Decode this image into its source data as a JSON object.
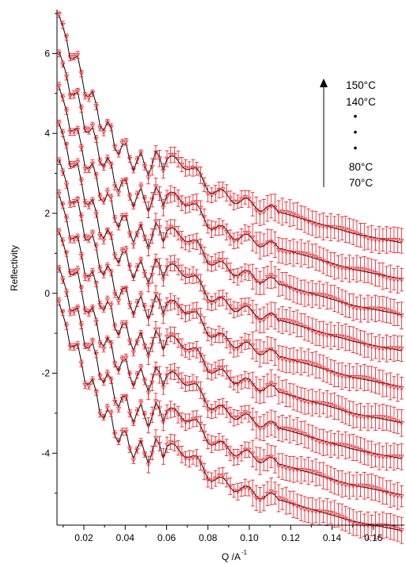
{
  "chart_data": {
    "type": "line",
    "title": "",
    "xlabel": "Q /A",
    "xlabel_superscript": "-1",
    "ylabel": "Reflectivity",
    "xlim": [
      0.007,
      0.175
    ],
    "ylim": [
      -5.8,
      7.1
    ],
    "xticks": [
      0.02,
      0.04,
      0.06,
      0.08,
      0.1,
      0.12,
      0.14,
      0.16
    ],
    "xtick_labels": [
      "0.02",
      "0.04",
      "0.06",
      "0.08",
      "0.10",
      "0.12",
      "0.14",
      "0.16"
    ],
    "yticks": [
      -4,
      -2,
      0,
      2,
      4,
      6
    ],
    "ytick_labels": [
      "-4",
      "-2",
      "0",
      "2",
      "4",
      "6"
    ],
    "grid": false,
    "legend_placement": "top-right",
    "annotation": {
      "top_label": "150°C",
      "second_label": "140°C",
      "ellipsis": [
        "•",
        "•",
        "•"
      ],
      "second_last_label": "80°C",
      "bottom_label": "70°C",
      "arrow_direction": "up"
    },
    "colors": {
      "data": "#e8141b",
      "fit": "#000000",
      "axis": "#000000"
    },
    "curve_count": 9,
    "offset_step": 0.9,
    "curves": [
      {
        "offset": 0.0,
        "q_end": 0.175,
        "x": [
          0.008,
          0.011,
          0.015,
          0.02,
          0.025,
          0.03,
          0.035,
          0.04,
          0.045,
          0.05,
          0.055,
          0.06,
          0.065,
          0.07,
          0.075,
          0.08,
          0.09,
          0.1,
          0.11,
          0.12,
          0.13,
          0.14,
          0.15,
          0.16,
          0.17,
          0.175
        ],
        "y": [
          6.95,
          6.5,
          5.9,
          5.3,
          4.7,
          4.2,
          3.8,
          3.5,
          3.3,
          3.2,
          3.3,
          3.35,
          3.3,
          3.2,
          3.0,
          2.65,
          2.4,
          2.25,
          2.1,
          1.95,
          1.8,
          1.65,
          1.5,
          1.4,
          1.3,
          1.25
        ]
      },
      {
        "offset": -0.9,
        "q_end": 0.175,
        "x": [
          0.008,
          0.011,
          0.015,
          0.02,
          0.025,
          0.03,
          0.035,
          0.04,
          0.045,
          0.05,
          0.055,
          0.06,
          0.065,
          0.07,
          0.075,
          0.08,
          0.09,
          0.1,
          0.11,
          0.12,
          0.13,
          0.14,
          0.15,
          0.16,
          0.17,
          0.175
        ],
        "y": [
          6.95,
          6.5,
          5.9,
          5.3,
          4.7,
          4.2,
          3.8,
          3.5,
          3.3,
          3.2,
          3.3,
          3.35,
          3.3,
          3.2,
          3.0,
          2.65,
          2.4,
          2.25,
          2.1,
          1.95,
          1.8,
          1.65,
          1.5,
          1.4,
          1.3,
          1.25
        ]
      },
      {
        "offset": -1.8,
        "q_end": 0.175,
        "x": [
          0.008,
          0.011,
          0.015,
          0.02,
          0.025,
          0.03,
          0.035,
          0.04,
          0.045,
          0.05,
          0.055,
          0.06,
          0.065,
          0.07,
          0.075,
          0.08,
          0.09,
          0.1,
          0.11,
          0.12,
          0.13,
          0.14,
          0.15,
          0.16,
          0.17,
          0.175
        ],
        "y": [
          6.95,
          6.5,
          5.9,
          5.3,
          4.7,
          4.2,
          3.8,
          3.5,
          3.3,
          3.2,
          3.3,
          3.35,
          3.3,
          3.2,
          3.0,
          2.65,
          2.4,
          2.25,
          2.1,
          1.95,
          1.8,
          1.65,
          1.5,
          1.4,
          1.3,
          1.25
        ]
      },
      {
        "offset": -2.7,
        "q_end": 0.175,
        "x": [
          0.008,
          0.011,
          0.015,
          0.02,
          0.025,
          0.03,
          0.035,
          0.04,
          0.045,
          0.05,
          0.055,
          0.06,
          0.065,
          0.07,
          0.075,
          0.08,
          0.09,
          0.1,
          0.11,
          0.12,
          0.13,
          0.14,
          0.15,
          0.16,
          0.17,
          0.175
        ],
        "y": [
          6.95,
          6.5,
          5.9,
          5.3,
          4.7,
          4.2,
          3.8,
          3.5,
          3.3,
          3.2,
          3.3,
          3.35,
          3.3,
          3.2,
          3.0,
          2.65,
          2.4,
          2.25,
          2.1,
          1.95,
          1.8,
          1.65,
          1.5,
          1.4,
          1.3,
          1.25
        ]
      },
      {
        "offset": -3.6,
        "q_end": 0.175,
        "x": [
          0.008,
          0.011,
          0.015,
          0.02,
          0.025,
          0.03,
          0.035,
          0.04,
          0.045,
          0.05,
          0.055,
          0.06,
          0.065,
          0.07,
          0.075,
          0.08,
          0.09,
          0.1,
          0.11,
          0.12,
          0.13,
          0.14,
          0.15,
          0.16,
          0.17,
          0.175
        ],
        "y": [
          6.95,
          6.5,
          5.9,
          5.3,
          4.7,
          4.2,
          3.8,
          3.5,
          3.3,
          3.2,
          3.3,
          3.35,
          3.3,
          3.2,
          3.0,
          2.65,
          2.4,
          2.25,
          2.1,
          1.95,
          1.8,
          1.65,
          1.5,
          1.4,
          1.3,
          1.25
        ]
      },
      {
        "offset": -4.5,
        "q_end": 0.175,
        "x": [
          0.008,
          0.011,
          0.015,
          0.02,
          0.025,
          0.03,
          0.035,
          0.04,
          0.045,
          0.05,
          0.055,
          0.06,
          0.065,
          0.07,
          0.075,
          0.08,
          0.09,
          0.1,
          0.11,
          0.12,
          0.13,
          0.14,
          0.15,
          0.16,
          0.17,
          0.175
        ],
        "y": [
          6.95,
          6.5,
          5.9,
          5.3,
          4.7,
          4.2,
          3.8,
          3.5,
          3.3,
          3.2,
          3.3,
          3.35,
          3.3,
          3.2,
          3.0,
          2.65,
          2.4,
          2.25,
          2.1,
          1.95,
          1.8,
          1.65,
          1.5,
          1.4,
          1.3,
          1.25
        ]
      },
      {
        "offset": -5.4,
        "q_end": 0.175,
        "x": [
          0.008,
          0.011,
          0.015,
          0.02,
          0.025,
          0.03,
          0.035,
          0.04,
          0.045,
          0.05,
          0.055,
          0.06,
          0.065,
          0.07,
          0.075,
          0.08,
          0.09,
          0.1,
          0.11,
          0.12,
          0.13,
          0.14,
          0.15,
          0.16,
          0.17,
          0.175
        ],
        "y": [
          6.95,
          6.5,
          5.9,
          5.3,
          4.7,
          4.2,
          3.8,
          3.5,
          3.3,
          3.2,
          3.3,
          3.35,
          3.3,
          3.2,
          3.0,
          2.65,
          2.4,
          2.25,
          2.1,
          1.95,
          1.8,
          1.65,
          1.5,
          1.4,
          1.3,
          1.25
        ]
      },
      {
        "offset": -6.3,
        "q_end": 0.175,
        "x": [
          0.008,
          0.011,
          0.015,
          0.02,
          0.025,
          0.03,
          0.035,
          0.04,
          0.045,
          0.05,
          0.055,
          0.06,
          0.065,
          0.07,
          0.075,
          0.08,
          0.09,
          0.1,
          0.11,
          0.12,
          0.13,
          0.14,
          0.15,
          0.16,
          0.17,
          0.175
        ],
        "y": [
          6.95,
          6.5,
          5.9,
          5.3,
          4.7,
          4.2,
          3.8,
          3.5,
          3.3,
          3.2,
          3.3,
          3.35,
          3.3,
          3.2,
          3.0,
          2.65,
          2.4,
          2.25,
          2.1,
          1.95,
          1.8,
          1.65,
          1.5,
          1.4,
          1.3,
          1.25
        ]
      },
      {
        "offset": -7.2,
        "q_end": 0.175,
        "x": [
          0.008,
          0.011,
          0.015,
          0.02,
          0.025,
          0.03,
          0.035,
          0.04,
          0.045,
          0.05,
          0.055,
          0.06,
          0.065,
          0.07,
          0.075,
          0.08,
          0.09,
          0.1,
          0.11,
          0.12,
          0.13,
          0.14,
          0.15,
          0.16,
          0.17,
          0.175
        ],
        "y": [
          6.95,
          6.5,
          5.9,
          5.3,
          4.7,
          4.2,
          3.8,
          3.5,
          3.3,
          3.2,
          3.3,
          3.35,
          3.3,
          3.2,
          3.0,
          2.65,
          2.4,
          2.25,
          2.1,
          1.95,
          1.8,
          1.65,
          1.5,
          1.4,
          1.3,
          1.25
        ]
      }
    ]
  }
}
